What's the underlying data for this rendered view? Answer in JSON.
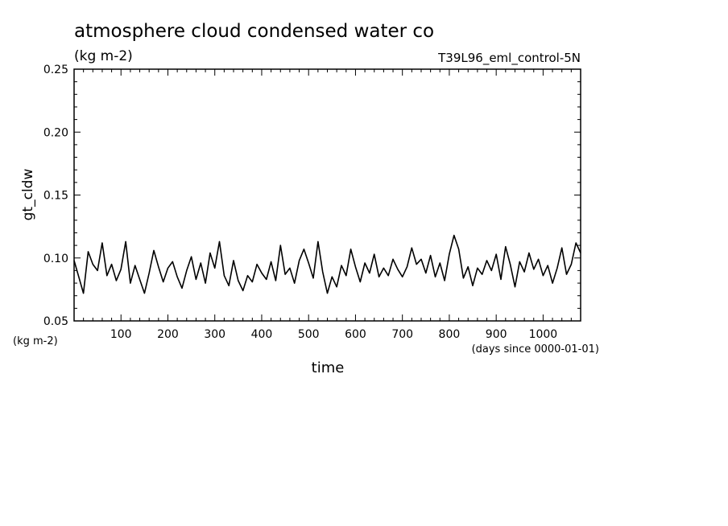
{
  "chart_data": {
    "type": "line",
    "title": "atmosphere cloud condensed water co",
    "subtitle": "(kg m-2)",
    "run_label": "T39L96_eml_control-5N",
    "xlabel": "time",
    "x_units": "(days since 0000-01-01)",
    "ylabel": "gt_cldw",
    "y_units": "(kg m-2)",
    "xlim": [
      0,
      1080
    ],
    "ylim": [
      0.05,
      0.25
    ],
    "x_ticks": [
      100,
      200,
      300,
      400,
      500,
      600,
      700,
      800,
      900,
      1000
    ],
    "x_tick_labels": [
      "100",
      "200",
      "300",
      "400",
      "500",
      "600",
      "700",
      "800",
      "900",
      "1000"
    ],
    "y_ticks": [
      0.05,
      0.1,
      0.15,
      0.2,
      0.25
    ],
    "y_tick_labels": [
      "0.05",
      "0.10",
      "0.15",
      "0.20",
      "0.25"
    ],
    "series": [
      {
        "name": "gt_cldw",
        "x": [
          0,
          10,
          20,
          30,
          40,
          50,
          60,
          70,
          80,
          90,
          100,
          110,
          120,
          130,
          140,
          150,
          160,
          170,
          180,
          190,
          200,
          210,
          220,
          230,
          240,
          250,
          260,
          270,
          280,
          290,
          300,
          310,
          320,
          330,
          340,
          350,
          360,
          370,
          380,
          390,
          400,
          410,
          420,
          430,
          440,
          450,
          460,
          470,
          480,
          490,
          500,
          510,
          520,
          530,
          540,
          550,
          560,
          570,
          580,
          590,
          600,
          610,
          620,
          630,
          640,
          650,
          660,
          670,
          680,
          690,
          700,
          710,
          720,
          730,
          740,
          750,
          760,
          770,
          780,
          790,
          800,
          810,
          820,
          830,
          840,
          850,
          860,
          870,
          880,
          890,
          900,
          910,
          920,
          930,
          940,
          950,
          960,
          970,
          980,
          990,
          1000,
          1010,
          1020,
          1030,
          1040,
          1050,
          1060,
          1070,
          1080
        ],
        "values": [
          0.098,
          0.085,
          0.072,
          0.105,
          0.095,
          0.09,
          0.112,
          0.086,
          0.095,
          0.082,
          0.091,
          0.113,
          0.08,
          0.094,
          0.083,
          0.072,
          0.088,
          0.106,
          0.093,
          0.081,
          0.092,
          0.097,
          0.085,
          0.076,
          0.09,
          0.101,
          0.083,
          0.096,
          0.08,
          0.104,
          0.092,
          0.113,
          0.086,
          0.078,
          0.098,
          0.082,
          0.074,
          0.086,
          0.081,
          0.095,
          0.088,
          0.083,
          0.097,
          0.082,
          0.11,
          0.087,
          0.092,
          0.08,
          0.098,
          0.107,
          0.096,
          0.084,
          0.113,
          0.089,
          0.072,
          0.085,
          0.077,
          0.094,
          0.086,
          0.107,
          0.093,
          0.081,
          0.096,
          0.088,
          0.103,
          0.085,
          0.092,
          0.086,
          0.099,
          0.091,
          0.085,
          0.093,
          0.108,
          0.095,
          0.099,
          0.088,
          0.102,
          0.085,
          0.096,
          0.082,
          0.103,
          0.118,
          0.107,
          0.084,
          0.093,
          0.078,
          0.092,
          0.087,
          0.098,
          0.09,
          0.103,
          0.083,
          0.109,
          0.095,
          0.077,
          0.097,
          0.089,
          0.104,
          0.091,
          0.099,
          0.086,
          0.094,
          0.08,
          0.092,
          0.108,
          0.087,
          0.095,
          0.112,
          0.104
        ]
      }
    ]
  }
}
